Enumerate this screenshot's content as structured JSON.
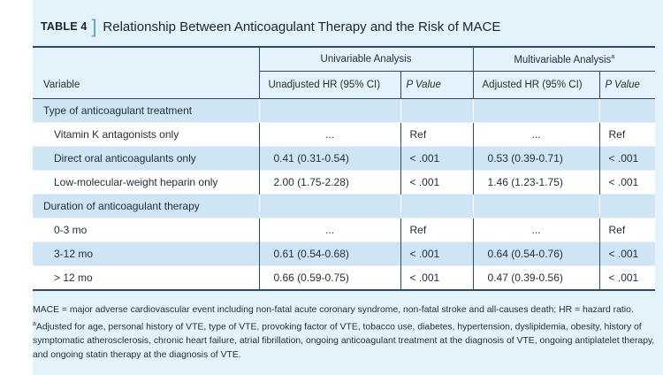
{
  "title": {
    "label": "TABLE 4",
    "bracket": "]",
    "text": "Relationship Between Anticoagulant Therapy and the Risk of MACE"
  },
  "header": {
    "variable": "Variable",
    "univariable": "Univariable Analysis",
    "multivariable": "Multivariable Analysis",
    "multivariable_sup": "a",
    "unadjusted_hr": "Unadjusted HR (95% CI)",
    "p_value_1": "P Value",
    "adjusted_hr": "Adjusted HR (95% CI)",
    "p_value_2": "P Value"
  },
  "rows": [
    {
      "label": "Type of anticoagulant treatment",
      "uhr": "",
      "up": "",
      "ahr": "",
      "ap": ""
    },
    {
      "label": "Vitamin K antagonists only",
      "uhr": "...",
      "up": "Ref",
      "ahr": "...",
      "ap": "Ref"
    },
    {
      "label": "Direct oral anticoagulants only",
      "uhr": "0.41 (0.31-0.54)",
      "up": "< .001",
      "ahr": "0.53 (0.39-0.71)",
      "ap": "< .001"
    },
    {
      "label": "Low-molecular-weight heparin only",
      "uhr": "2.00 (1.75-2.28)",
      "up": "< .001",
      "ahr": "1.46 (1.23-1.75)",
      "ap": "< .001"
    },
    {
      "label": "Duration of anticoagulant therapy",
      "uhr": "",
      "up": "",
      "ahr": "",
      "ap": ""
    },
    {
      "label": "0-3 mo",
      "uhr": "...",
      "up": "Ref",
      "ahr": "...",
      "ap": "Ref"
    },
    {
      "label": "3-12 mo",
      "uhr": "0.61 (0.54-0.68)",
      "up": "< .001",
      "ahr": "0.64 (0.54-0.76)",
      "ap": "< .001"
    },
    {
      "label": "> 12 mo",
      "uhr": "0.66 (0.59-0.75)",
      "up": "< .001",
      "ahr": "0.47 (0.39-0.56)",
      "ap": "< .001"
    }
  ],
  "footnote": {
    "line1": "MACE = major adverse cardiovascular event including non-fatal acute coronary syndrome, non-fatal stroke and all-causes death; HR = hazard ratio.",
    "sup": "a",
    "line2": "Adjusted for age, personal history of VTE, type of VTE, provoking factor of VTE, tobacco use, diabetes, hypertension, dyslipidemia, obesity, history of symptomatic atherosclerosis, chronic heart failure, atrial fibrillation, ongoing anticoagulant treatment at the diagnosis of VTE, ongoing antiplatelet therapy, and ongoing statin therapy at the diagnosis of VTE."
  }
}
